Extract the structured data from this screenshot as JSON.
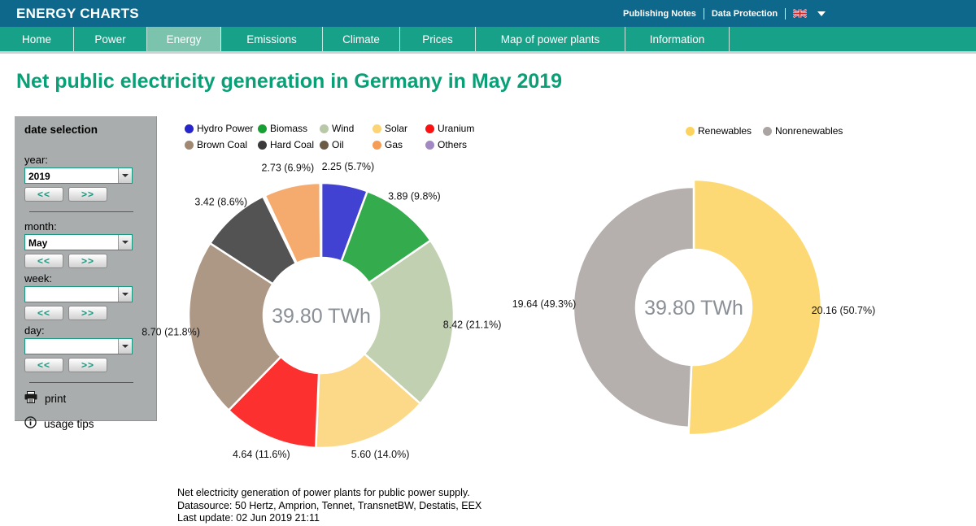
{
  "theme": {
    "header_bg": "#0e688c",
    "nav_bg": "#18a189",
    "active_tab_bg": "#7cc3ad",
    "title_color": "#0aa077",
    "sidebar_bg": "#a9adad",
    "accent_green": "#16997e",
    "center_label_color": "#8a9096"
  },
  "header": {
    "logo": "ENERGY CHARTS",
    "links": [
      "Publishing Notes",
      "Data Protection"
    ],
    "language_flag": "uk-flag",
    "nav": [
      {
        "label": "Home",
        "active": false
      },
      {
        "label": "Power",
        "active": false
      },
      {
        "label": "Energy",
        "active": true
      },
      {
        "label": "Emissions",
        "active": false
      },
      {
        "label": "Climate",
        "active": false
      },
      {
        "label": "Prices",
        "active": false
      },
      {
        "label": "Map of power plants",
        "active": false
      },
      {
        "label": "Information",
        "active": false
      }
    ]
  },
  "page": {
    "title": "Net public electricity generation in Germany in May 2019"
  },
  "sidebar": {
    "title": "date selection",
    "prev_label": "<<",
    "next_label": ">>",
    "fields": [
      {
        "name": "year",
        "label": "year:",
        "value": "2019"
      },
      {
        "name": "month",
        "label": "month:",
        "value": "May"
      },
      {
        "name": "week",
        "label": "week:",
        "value": ""
      },
      {
        "name": "day",
        "label": "day:",
        "value": ""
      }
    ],
    "actions": [
      {
        "icon": "printer-icon",
        "label": "print"
      },
      {
        "icon": "info-icon",
        "label": "usage tips"
      }
    ]
  },
  "chart_data": [
    {
      "type": "pie",
      "subtype": "donut",
      "center_label": "39.80 TWh",
      "total_twh": 39.8,
      "unit": "TWh",
      "legend_position": "top",
      "legend_rows": [
        [
          "Hydro Power",
          "Biomass",
          "Wind",
          "Solar",
          "Uranium"
        ],
        [
          "Brown Coal",
          "Hard Coal",
          "Oil",
          "Gas",
          "Others"
        ]
      ],
      "series": [
        {
          "name": "Hydro Power",
          "value": 2.25,
          "pct": 5.7,
          "label": "2.25 (5.7%)",
          "color": "#2525cb"
        },
        {
          "name": "Biomass",
          "value": 3.89,
          "pct": 9.8,
          "label": "3.89 (9.8%)",
          "color": "#16a034"
        },
        {
          "name": "Wind",
          "value": 8.42,
          "pct": 21.1,
          "label": "8.42 (21.1%)",
          "color": "#b9c9a7"
        },
        {
          "name": "Solar",
          "value": 5.6,
          "pct": 14.0,
          "label": "5.60 (14.0%)",
          "color": "#fcd377"
        },
        {
          "name": "Uranium",
          "value": 4.64,
          "pct": 11.6,
          "label": "4.64 (11.6%)",
          "color": "#fc1110"
        },
        {
          "name": "Brown Coal",
          "value": 8.7,
          "pct": 21.8,
          "label": "8.70 (21.8%)",
          "color": "#a18873"
        },
        {
          "name": "Hard Coal",
          "value": 3.42,
          "pct": 8.6,
          "label": "3.42 (8.6%)",
          "color": "#3a3a3a"
        },
        {
          "name": "Oil",
          "value": 0.1,
          "label": "",
          "color": "#6e5b45"
        },
        {
          "name": "Gas",
          "value": 2.73,
          "pct": 6.9,
          "label": "2.73 (6.9%)",
          "color": "#f49d58"
        },
        {
          "name": "Others",
          "value": 0.05,
          "label": "",
          "color": "#a289c4"
        }
      ]
    },
    {
      "type": "pie",
      "subtype": "donut",
      "center_label": "39.80 TWh",
      "total_twh": 39.8,
      "unit": "TWh",
      "legend_position": "top",
      "legend_rows": [
        [
          "Renewables",
          "Nonrenewables"
        ]
      ],
      "series": [
        {
          "name": "Renewables",
          "value": 20.16,
          "pct": 50.7,
          "label": "20.16 (50.7%)",
          "color": "#fcd35f",
          "outer_r": 157
        },
        {
          "name": "Nonrenewables",
          "value": 19.64,
          "pct": 49.3,
          "label": "19.64 (49.3%)",
          "color": "#aaa4a2",
          "outer_r": 148
        }
      ]
    }
  ],
  "footer": {
    "lines": [
      "Net electricity generation of power plants for public power supply.",
      "Datasource: 50 Hertz, Amprion, Tennet, TransnetBW, Destatis, EEX",
      "Last update: 02 Jun 2019 21:11"
    ]
  }
}
